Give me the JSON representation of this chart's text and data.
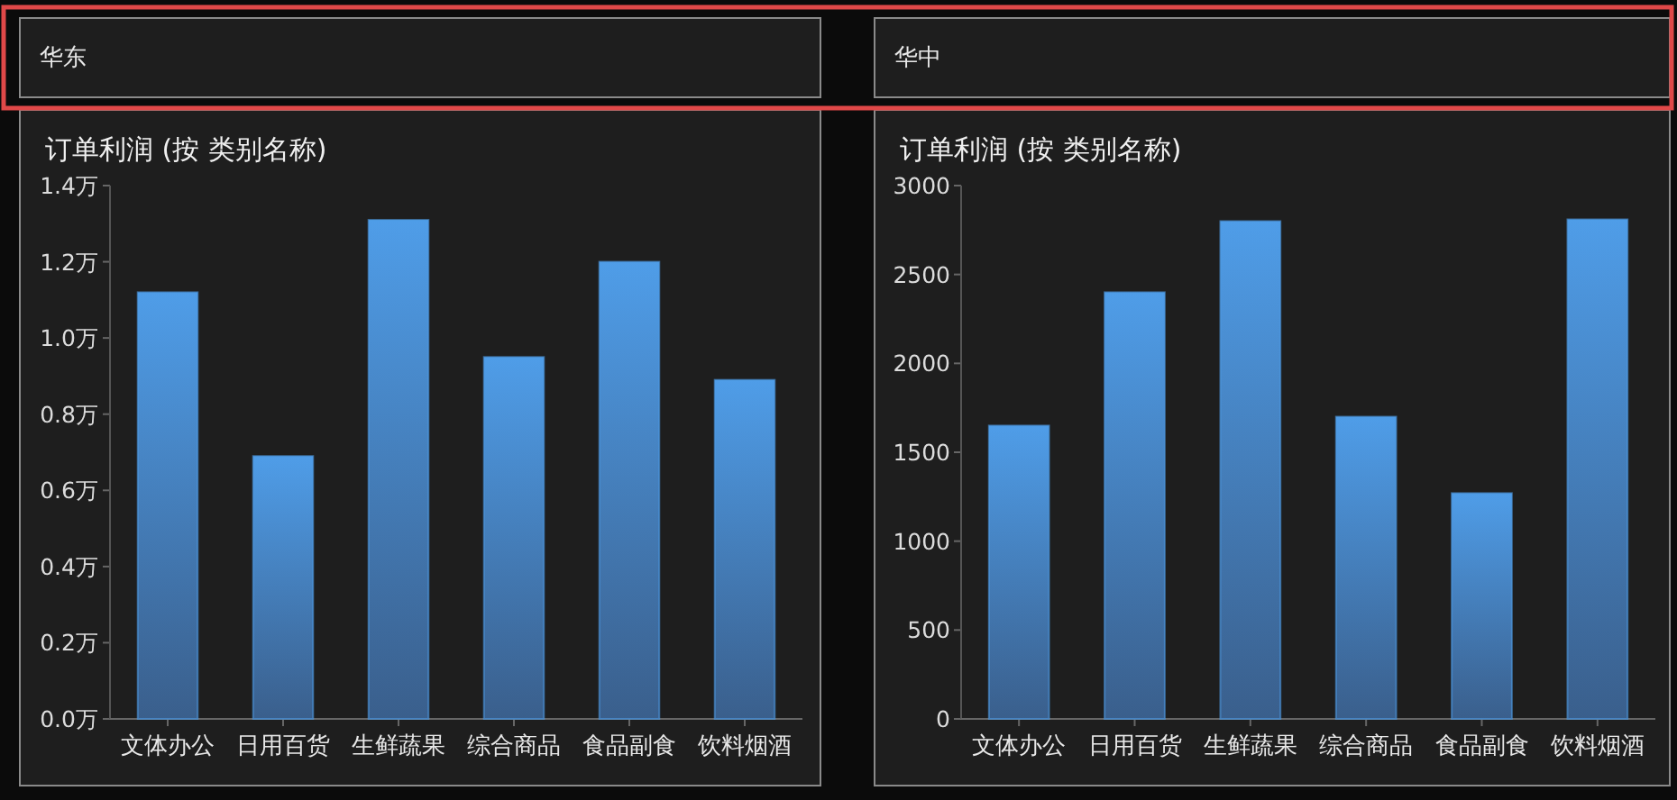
{
  "chart_data": [
    {
      "type": "bar",
      "subtitle": "华东",
      "title": "订单利润 (按 类别名称)",
      "categories": [
        "文体办公",
        "日用百货",
        "生鲜蔬果",
        "综合商品",
        "食品副食",
        "饮料烟酒"
      ],
      "values": [
        1.12,
        0.69,
        1.31,
        0.95,
        1.2,
        0.89
      ],
      "color": "#4f9de8",
      "ylim": [
        0,
        1.4
      ],
      "yticks": [
        {
          "value": 0,
          "label": "0.0万"
        },
        {
          "value": 0.2,
          "label": "0.2万"
        },
        {
          "value": 0.4,
          "label": "0.4万"
        },
        {
          "value": 0.6,
          "label": "0.6万"
        },
        {
          "value": 0.8,
          "label": "0.8万"
        },
        {
          "value": 1.0,
          "label": "1.0万"
        },
        {
          "value": 1.2,
          "label": "1.2万"
        },
        {
          "value": 1.4,
          "label": "1.4万"
        }
      ],
      "grid": false
    },
    {
      "type": "bar",
      "subtitle": "华中",
      "title": "订单利润 (按 类别名称)",
      "categories": [
        "文体办公",
        "日用百货",
        "生鲜蔬果",
        "综合商品",
        "食品副食",
        "饮料烟酒"
      ],
      "values": [
        1650,
        2400,
        2800,
        1700,
        1270,
        2810
      ],
      "color": "#4f9de8",
      "ylim": [
        0,
        3000
      ],
      "yticks": [
        0,
        500,
        1000,
        1500,
        2000,
        2500,
        3000
      ],
      "grid": false
    }
  ]
}
